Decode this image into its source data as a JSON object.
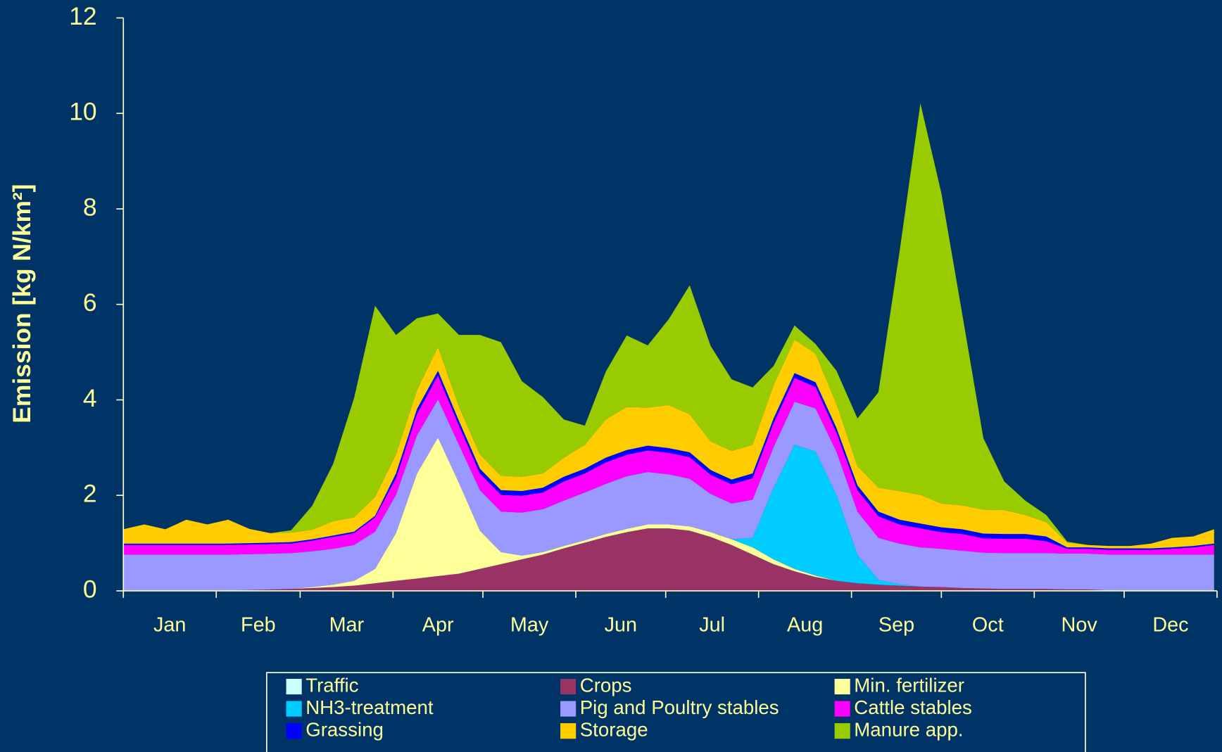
{
  "chart_data": {
    "type": "area",
    "stacked": true,
    "y_label": "Emission [kg N/km²]",
    "x": [
      0,
      7,
      14,
      21,
      28,
      35,
      42,
      49,
      56,
      63,
      70,
      77,
      84,
      91,
      98,
      105,
      112,
      119,
      126,
      133,
      140,
      147,
      154,
      161,
      168,
      175,
      182,
      189,
      196,
      203,
      210,
      217,
      224,
      231,
      238,
      245,
      252,
      259,
      266,
      273,
      280,
      287,
      294,
      301,
      308,
      315,
      322,
      329,
      336,
      343,
      350,
      357,
      364
    ],
    "xlim": [
      0,
      365
    ],
    "xticks": [
      0,
      31,
      59,
      90,
      120,
      151,
      181,
      212,
      243,
      273,
      304,
      334,
      365
    ],
    "month_labels": [
      {
        "value": 15.5,
        "label": "Jan"
      },
      {
        "value": 45,
        "label": "Feb"
      },
      {
        "value": 74.5,
        "label": "Mar"
      },
      {
        "value": 105,
        "label": "Apr"
      },
      {
        "value": 135.5,
        "label": "May"
      },
      {
        "value": 166,
        "label": "Jun"
      },
      {
        "value": 196.5,
        "label": "Jul"
      },
      {
        "value": 227.5,
        "label": "Aug"
      },
      {
        "value": 258,
        "label": "Sep"
      },
      {
        "value": 288.5,
        "label": "Oct"
      },
      {
        "value": 319,
        "label": "Nov"
      },
      {
        "value": 349.5,
        "label": "Dec"
      }
    ],
    "ylim": [
      0,
      12
    ],
    "yticks": [
      0,
      2,
      4,
      6,
      8,
      10,
      12
    ],
    "series": [
      {
        "name": "Traffic",
        "color": "#ccffff",
        "values": [
          0.01,
          0.01,
          0.01,
          0.01,
          0.01,
          0.01,
          0.01,
          0.01,
          0.01,
          0.01,
          0.01,
          0.01,
          0.01,
          0.01,
          0.01,
          0.01,
          0.01,
          0.01,
          0.01,
          0.01,
          0.01,
          0.01,
          0.01,
          0.01,
          0.01,
          0.01,
          0.01,
          0.01,
          0.01,
          0.01,
          0.01,
          0.01,
          0.01,
          0.01,
          0.01,
          0.01,
          0.01,
          0.01,
          0.01,
          0.01,
          0.01,
          0.01,
          0.01,
          0.01,
          0.01,
          0.01,
          0.01,
          0.01,
          0.01,
          0.01,
          0.01,
          0.01,
          0.01
        ]
      },
      {
        "name": "Crops",
        "color": "#993366",
        "values": [
          0,
          0,
          0,
          0,
          0,
          0,
          0.01,
          0.02,
          0.03,
          0.05,
          0.07,
          0.1,
          0.15,
          0.2,
          0.25,
          0.3,
          0.35,
          0.45,
          0.55,
          0.65,
          0.75,
          0.88,
          1.0,
          1.12,
          1.22,
          1.3,
          1.3,
          1.25,
          1.12,
          0.95,
          0.75,
          0.55,
          0.4,
          0.28,
          0.2,
          0.15,
          0.12,
          0.1,
          0.08,
          0.07,
          0.05,
          0.04,
          0.03,
          0.03,
          0.03,
          0.02,
          0.02,
          0,
          0,
          0,
          0,
          0,
          0
        ]
      },
      {
        "name": "Min. fertilizer",
        "color": "#ffff99",
        "values": [
          0,
          0,
          0,
          0,
          0,
          0,
          0,
          0,
          0,
          0.02,
          0.05,
          0.1,
          0.3,
          1.0,
          2.2,
          2.9,
          1.9,
          0.8,
          0.25,
          0.08,
          0.05,
          0.05,
          0.05,
          0.06,
          0.07,
          0.08,
          0.08,
          0.09,
          0.1,
          0.12,
          0.15,
          0.1,
          0.05,
          0.03,
          0,
          0,
          0,
          0,
          0,
          0,
          0,
          0,
          0,
          0,
          0,
          0,
          0,
          0,
          0,
          0,
          0,
          0,
          0
        ]
      },
      {
        "name": "NH3-treatment",
        "color": "#00ccff",
        "values": [
          0,
          0,
          0,
          0,
          0,
          0,
          0,
          0,
          0,
          0,
          0,
          0,
          0,
          0,
          0,
          0,
          0,
          0,
          0,
          0,
          0,
          0,
          0,
          0,
          0,
          0,
          0,
          0,
          0,
          0,
          0.2,
          1.5,
          2.6,
          2.6,
          1.8,
          0.6,
          0.1,
          0.03,
          0,
          0,
          0,
          0,
          0,
          0,
          0,
          0,
          0,
          0,
          0,
          0,
          0,
          0,
          0
        ]
      },
      {
        "name": "Pig and Poultry stables",
        "color": "#9999ff",
        "values": [
          0.75,
          0.75,
          0.75,
          0.75,
          0.75,
          0.75,
          0.75,
          0.75,
          0.75,
          0.75,
          0.75,
          0.75,
          0.78,
          0.8,
          0.8,
          0.8,
          0.8,
          0.85,
          0.85,
          0.9,
          0.9,
          0.95,
          1.0,
          1.05,
          1.1,
          1.1,
          1.05,
          1.0,
          0.8,
          0.75,
          0.8,
          0.85,
          0.9,
          0.9,
          0.9,
          0.9,
          0.88,
          0.85,
          0.82,
          0.8,
          0.78,
          0.75,
          0.75,
          0.75,
          0.75,
          0.75,
          0.75,
          0.75,
          0.75,
          0.75,
          0.75,
          0.75,
          0.75
        ]
      },
      {
        "name": "Cattle stables",
        "color": "#ff00ff",
        "values": [
          0.2,
          0.2,
          0.2,
          0.2,
          0.2,
          0.2,
          0.2,
          0.2,
          0.2,
          0.22,
          0.25,
          0.25,
          0.3,
          0.35,
          0.45,
          0.5,
          0.4,
          0.35,
          0.35,
          0.35,
          0.35,
          0.4,
          0.4,
          0.45,
          0.45,
          0.45,
          0.45,
          0.45,
          0.4,
          0.4,
          0.45,
          0.5,
          0.5,
          0.45,
          0.4,
          0.45,
          0.45,
          0.4,
          0.4,
          0.35,
          0.35,
          0.3,
          0.3,
          0.3,
          0.25,
          0.1,
          0.1,
          0.1,
          0.1,
          0.1,
          0.12,
          0.15,
          0.2
        ]
      },
      {
        "name": "Grassing",
        "color": "#0000ff",
        "values": [
          0.03,
          0.03,
          0.03,
          0.03,
          0.03,
          0.03,
          0.03,
          0.03,
          0.03,
          0.03,
          0.03,
          0.03,
          0.03,
          0.1,
          0.1,
          0.1,
          0.1,
          0.1,
          0.1,
          0.1,
          0.1,
          0.1,
          0.1,
          0.1,
          0.1,
          0.1,
          0.1,
          0.1,
          0.1,
          0.1,
          0.1,
          0.1,
          0.1,
          0.1,
          0.1,
          0.1,
          0.1,
          0.1,
          0.1,
          0.1,
          0.1,
          0.1,
          0.1,
          0.1,
          0.1,
          0.03,
          0.03,
          0.03,
          0.03,
          0.03,
          0.03,
          0.03,
          0.03
        ]
      },
      {
        "name": "Storage",
        "color": "#ffcc00",
        "values": [
          0.3,
          0.4,
          0.3,
          0.5,
          0.4,
          0.5,
          0.3,
          0.2,
          0.2,
          0.2,
          0.3,
          0.3,
          0.4,
          0.4,
          0.4,
          0.5,
          0.3,
          0.3,
          0.3,
          0.3,
          0.3,
          0.4,
          0.5,
          0.8,
          0.9,
          0.8,
          0.9,
          0.8,
          0.6,
          0.6,
          0.6,
          0.7,
          0.7,
          0.6,
          0.5,
          0.4,
          0.5,
          0.6,
          0.6,
          0.5,
          0.5,
          0.5,
          0.5,
          0.4,
          0.3,
          0.1,
          0.05,
          0.05,
          0.05,
          0.1,
          0.2,
          0.2,
          0.3
        ]
      },
      {
        "name": "Manure app.",
        "color": "#99cc00",
        "values": [
          0,
          0,
          0,
          0,
          0,
          0,
          0,
          0,
          0.05,
          0.5,
          1.2,
          2.5,
          4.0,
          2.5,
          1.5,
          0.7,
          1.5,
          2.5,
          2.8,
          2.0,
          1.6,
          0.8,
          0.4,
          1.0,
          1.5,
          1.3,
          1.8,
          2.7,
          2.0,
          1.5,
          1.2,
          0.4,
          0.3,
          0.2,
          0.7,
          1.0,
          2.0,
          5.0,
          8.2,
          6.5,
          4.0,
          1.5,
          0.6,
          0.3,
          0.15,
          0.02,
          0,
          0,
          0,
          0,
          0,
          0,
          0
        ]
      }
    ]
  }
}
